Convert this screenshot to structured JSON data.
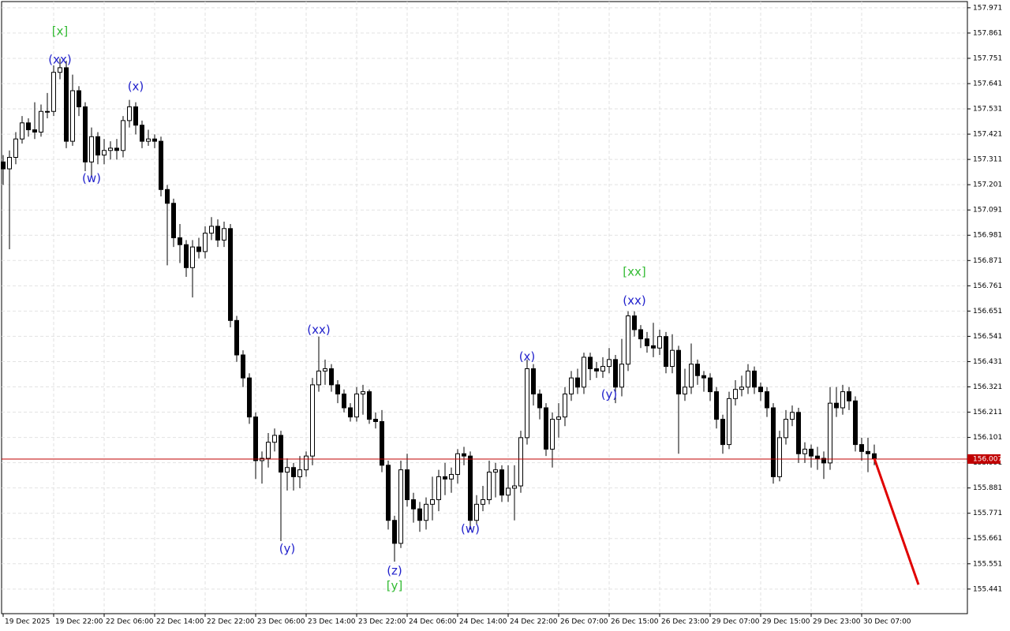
{
  "chart_data": {
    "type": "candlestick",
    "categories": [
      "19 Dec 2025",
      null,
      null,
      null,
      null,
      null,
      null,
      null,
      "19 Dec 22:00",
      null,
      null,
      null,
      null,
      null,
      null,
      null,
      "22 Dec 06:00",
      null,
      null,
      null,
      null,
      null,
      null,
      null,
      "22 Dec 14:00",
      null,
      null,
      null,
      null,
      null,
      null,
      null,
      "22 Dec 22:00",
      null,
      null,
      null,
      null,
      null,
      null,
      null,
      "23 Dec 06:00",
      null,
      null,
      null,
      null,
      null,
      null,
      null,
      "23 Dec 14:00",
      null,
      null,
      null,
      null,
      null,
      null,
      null,
      "23 Dec 22:00",
      null,
      null,
      null,
      null,
      null,
      null,
      null,
      "24 Dec 06:00",
      null,
      null,
      null,
      null,
      null,
      null,
      null,
      "24 Dec 14:00",
      null,
      null,
      null,
      null,
      null,
      null,
      null,
      "24 Dec 22:00",
      null,
      null,
      null,
      null,
      null,
      null,
      null,
      "26 Dec 07:00",
      null,
      null,
      null,
      null,
      null,
      null,
      null,
      "26 Dec 15:00",
      null,
      null,
      null,
      null,
      null,
      null,
      null,
      "26 Dec 23:00",
      null,
      null,
      null,
      null,
      null,
      null,
      null,
      "29 Dec 07:00",
      null,
      null,
      null,
      null,
      null,
      null,
      null,
      "29 Dec 15:00",
      null,
      null,
      null,
      null,
      null,
      null,
      null,
      "29 Dec 23:00",
      null,
      null,
      null,
      null,
      null,
      null,
      null,
      "30 Dec 07:00",
      null,
      null
    ],
    "open": [
      157.3,
      157.27,
      157.32,
      157.4,
      157.47,
      157.44,
      157.43,
      157.52,
      157.52,
      157.69,
      157.71,
      157.39,
      157.61,
      157.54,
      157.3,
      157.41,
      157.33,
      157.35,
      157.36,
      157.35,
      157.48,
      157.54,
      157.46,
      157.39,
      157.4,
      157.39,
      157.18,
      157.12,
      156.97,
      156.94,
      156.84,
      156.93,
      156.91,
      156.99,
      157.02,
      156.96,
      157.01,
      156.61,
      156.46,
      156.36,
      156.19,
      156.0,
      156.01,
      156.08,
      156.11,
      155.95,
      155.97,
      155.93,
      155.96,
      156.02,
      156.33,
      156.39,
      156.4,
      156.33,
      156.29,
      156.23,
      156.19,
      156.29,
      156.3,
      156.18,
      156.17,
      155.98,
      155.74,
      155.64,
      155.96,
      155.83,
      155.79,
      155.74,
      155.81,
      155.83,
      155.93,
      155.92,
      155.94,
      156.03,
      156.02,
      155.74,
      155.81,
      155.83,
      155.95,
      155.96,
      155.85,
      155.88,
      155.89,
      156.1,
      156.4,
      156.29,
      156.23,
      156.05,
      156.18,
      156.19,
      156.29,
      156.36,
      156.32,
      156.45,
      156.4,
      156.39,
      156.41,
      156.44,
      156.32,
      156.42,
      156.63,
      156.57,
      156.53,
      156.5,
      156.49,
      156.54,
      156.41,
      156.48,
      156.29,
      156.32,
      156.42,
      156.37,
      156.36,
      156.3,
      156.18,
      156.07,
      156.27,
      156.31,
      156.32,
      156.39,
      156.32,
      156.3,
      156.23,
      155.93,
      156.1,
      156.18,
      156.21,
      156.03,
      156.05,
      156.02,
      156.01,
      155.99,
      156.25,
      156.23,
      156.3,
      156.26,
      156.07,
      156.04,
      156.03
    ],
    "high": [
      157.33,
      157.35,
      157.43,
      157.5,
      157.49,
      157.56,
      157.55,
      157.6,
      157.72,
      157.75,
      157.74,
      157.68,
      157.63,
      157.56,
      157.45,
      157.43,
      157.4,
      157.39,
      157.4,
      157.5,
      157.57,
      157.56,
      157.48,
      157.44,
      157.42,
      157.41,
      157.2,
      157.14,
      157.03,
      156.96,
      156.96,
      156.97,
      157.02,
      157.06,
      157.05,
      157.04,
      157.03,
      156.63,
      156.48,
      156.38,
      156.21,
      156.04,
      156.12,
      156.14,
      156.13,
      156.01,
      155.99,
      156.02,
      156.04,
      156.36,
      156.54,
      156.44,
      156.42,
      156.35,
      156.31,
      156.25,
      156.32,
      156.33,
      156.31,
      156.21,
      156.22,
      156.0,
      155.76,
      156.0,
      156.03,
      155.86,
      155.82,
      155.84,
      155.93,
      155.96,
      155.99,
      155.97,
      156.05,
      156.06,
      156.04,
      155.85,
      155.89,
      156.0,
      155.99,
      155.98,
      155.98,
      155.98,
      156.13,
      156.44,
      156.42,
      156.31,
      156.25,
      156.21,
      156.25,
      156.32,
      156.39,
      156.4,
      156.47,
      156.47,
      156.43,
      156.45,
      156.49,
      156.46,
      156.53,
      156.65,
      156.65,
      156.59,
      156.56,
      156.6,
      156.57,
      156.56,
      156.55,
      156.5,
      156.4,
      156.51,
      156.44,
      156.39,
      156.38,
      156.32,
      156.2,
      156.3,
      156.35,
      156.37,
      156.42,
      156.41,
      156.34,
      156.32,
      156.25,
      156.13,
      156.22,
      156.24,
      156.23,
      156.08,
      156.07,
      156.06,
      156.04,
      156.32,
      156.32,
      156.33,
      156.32,
      156.28,
      156.1,
      156.1,
      156.07
    ],
    "low": [
      157.2,
      156.92,
      157.29,
      157.38,
      157.41,
      157.4,
      157.41,
      157.49,
      157.5,
      157.66,
      157.36,
      157.37,
      157.5,
      157.26,
      157.24,
      157.29,
      157.29,
      157.31,
      157.31,
      157.32,
      157.45,
      157.42,
      157.36,
      157.37,
      157.36,
      157.15,
      156.85,
      156.93,
      156.86,
      156.8,
      156.71,
      156.88,
      156.88,
      156.96,
      156.93,
      156.93,
      156.58,
      156.43,
      156.32,
      156.16,
      155.92,
      155.9,
      155.97,
      156.04,
      155.65,
      155.87,
      155.87,
      155.88,
      155.93,
      155.98,
      156.3,
      156.33,
      156.3,
      156.25,
      156.21,
      156.17,
      156.17,
      156.2,
      156.16,
      156.14,
      155.95,
      155.7,
      155.56,
      155.62,
      155.8,
      155.73,
      155.69,
      155.7,
      155.74,
      155.78,
      155.85,
      155.86,
      155.9,
      155.98,
      155.7,
      155.72,
      155.78,
      155.81,
      155.84,
      155.82,
      155.82,
      155.74,
      155.86,
      156.07,
      156.24,
      156.18,
      156.02,
      155.97,
      156.1,
      156.15,
      156.26,
      156.29,
      156.29,
      156.35,
      156.36,
      156.36,
      156.38,
      156.25,
      156.28,
      156.39,
      156.54,
      156.49,
      156.47,
      156.45,
      156.46,
      156.38,
      156.38,
      156.03,
      156.26,
      156.29,
      156.33,
      156.3,
      156.26,
      156.14,
      156.03,
      156.05,
      156.24,
      156.28,
      156.29,
      156.29,
      156.26,
      156.19,
      155.9,
      155.91,
      156.07,
      156.15,
      155.99,
      155.99,
      155.97,
      155.96,
      155.92,
      155.96,
      156.19,
      156.2,
      156.22,
      156.04,
      156.0,
      155.95,
      155.98
    ],
    "close": [
      157.27,
      157.32,
      157.4,
      157.47,
      157.44,
      157.43,
      157.52,
      157.52,
      157.69,
      157.71,
      157.39,
      157.61,
      157.54,
      157.3,
      157.41,
      157.33,
      157.35,
      157.36,
      157.35,
      157.48,
      157.54,
      157.46,
      157.39,
      157.4,
      157.39,
      157.18,
      157.12,
      156.97,
      156.94,
      156.84,
      156.93,
      156.91,
      156.99,
      157.02,
      156.96,
      157.01,
      156.61,
      156.46,
      156.36,
      156.19,
      156.0,
      156.01,
      156.08,
      156.11,
      155.95,
      155.97,
      155.93,
      155.96,
      156.02,
      156.33,
      156.39,
      156.4,
      156.33,
      156.29,
      156.23,
      156.19,
      156.29,
      156.3,
      156.18,
      156.17,
      155.98,
      155.74,
      155.64,
      155.96,
      155.83,
      155.79,
      155.74,
      155.81,
      155.83,
      155.93,
      155.92,
      155.94,
      156.03,
      156.02,
      155.74,
      155.81,
      155.83,
      155.95,
      155.96,
      155.85,
      155.88,
      155.89,
      156.1,
      156.4,
      156.29,
      156.23,
      156.05,
      156.18,
      156.19,
      156.29,
      156.36,
      156.32,
      156.45,
      156.4,
      156.39,
      156.41,
      156.44,
      156.32,
      156.42,
      156.63,
      156.57,
      156.53,
      156.5,
      156.49,
      156.54,
      156.41,
      156.48,
      156.29,
      156.32,
      156.42,
      156.37,
      156.36,
      156.3,
      156.18,
      156.07,
      156.27,
      156.31,
      156.32,
      156.39,
      156.32,
      156.3,
      156.23,
      155.93,
      156.1,
      156.18,
      156.21,
      156.03,
      156.05,
      156.02,
      156.01,
      155.99,
      156.25,
      156.23,
      156.3,
      156.26,
      156.07,
      156.04,
      156.03,
      156.01
    ],
    "up_color": "#ffffff",
    "down_color": "#000000",
    "ylim": [
      155.334,
      157.998
    ],
    "yticks": [
      157.971,
      157.861,
      157.751,
      157.641,
      157.531,
      157.421,
      157.311,
      157.201,
      157.091,
      156.981,
      156.871,
      156.761,
      156.651,
      156.541,
      156.431,
      156.321,
      156.211,
      156.101,
      155.991,
      155.881,
      155.771,
      155.661,
      155.551,
      155.441
    ],
    "grid": true,
    "last_price": 156.007,
    "last_price_color": "#c00000",
    "forecast": {
      "values": [
        156.01,
        155.46
      ],
      "color": "#e00000"
    },
    "annotations": [
      {
        "text": "[x]",
        "index": 9,
        "value": 157.868,
        "color": "#33bb33"
      },
      {
        "text": "(xx)",
        "index": 9,
        "value": 157.744,
        "color": "#2222cc"
      },
      {
        "text": "(w)",
        "index": 14,
        "value": 157.228,
        "color": "#2222cc"
      },
      {
        "text": "(x)",
        "index": 21,
        "value": 157.627,
        "color": "#2222cc"
      },
      {
        "text": "(y)",
        "index": 45,
        "value": 155.616,
        "color": "#2222cc"
      },
      {
        "text": "(xx)",
        "index": 50,
        "value": 156.569,
        "color": "#2222cc"
      },
      {
        "text": "(z)",
        "index": 62,
        "value": 155.52,
        "color": "#2222cc"
      },
      {
        "text": "[y]",
        "index": 62,
        "value": 155.455,
        "color": "#33bb33"
      },
      {
        "text": "(w)",
        "index": 74,
        "value": 155.702,
        "color": "#2222cc"
      },
      {
        "text": "(x)",
        "index": 83,
        "value": 156.452,
        "color": "#2222cc"
      },
      {
        "text": "(y)",
        "index": 96,
        "value": 156.287,
        "color": "#2222cc"
      },
      {
        "text": "(xx)",
        "index": 100,
        "value": 156.696,
        "color": "#2222cc"
      },
      {
        "text": "[xx]",
        "index": 100,
        "value": 156.82,
        "color": "#33bb33"
      }
    ]
  }
}
